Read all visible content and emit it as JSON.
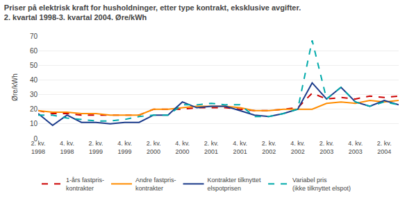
{
  "chart_data": {
    "type": "line",
    "title": "Priser på elektrisk kraft for husholdninger, etter type kontrakt, eksklusive avgifter.",
    "subtitle": "2. kvartal 1998-3. kvartal 2004. Øre/kWh",
    "ylabel": "Øre/kWh",
    "categories": [
      "2. kv.\n1998",
      null,
      "4. kv.\n1998",
      null,
      "2. kv.\n1999",
      null,
      "4. kv.\n1999",
      null,
      "2. kv.\n2000",
      null,
      "4. kv.\n2000",
      null,
      "2. kv.\n2001",
      null,
      "4. kv.\n2001",
      null,
      "2. kv.\n2002",
      null,
      "4. kv.\n2002",
      null,
      "2. kv.\n2003",
      null,
      "4. kv.\n2003",
      null,
      "2. kv.\n2004",
      null
    ],
    "series": [
      {
        "name": "1-års fastpris-\nkontrakter",
        "color": "#cc0000",
        "line_style": "dashed",
        "values": [
          19,
          17,
          17,
          16,
          16,
          16,
          16,
          16,
          20,
          20,
          20,
          21,
          21,
          21,
          20,
          19,
          19,
          20,
          21,
          31,
          27,
          28,
          27,
          29,
          28,
          29
        ]
      },
      {
        "name": "Andre fastpris-\nkontrakter",
        "color": "#ff8c00",
        "line_style": "solid",
        "values": [
          19,
          18,
          18,
          17,
          17,
          16,
          16,
          16,
          20,
          20,
          21,
          22,
          22,
          22,
          21,
          19,
          19,
          20,
          20,
          20,
          24,
          25,
          24,
          26,
          25,
          26
        ]
      },
      {
        "name": "Kontrakter tilknyttet\nelspotprisen",
        "color": "#1a3a8a",
        "line_style": "solid",
        "values": [
          17,
          9,
          16,
          11,
          11,
          10,
          11,
          11,
          16,
          16,
          25,
          21,
          22,
          22,
          19,
          16,
          15,
          17,
          20,
          38,
          27,
          35,
          25,
          22,
          26,
          23
        ]
      },
      {
        "name": "Variabel pris\n(ikke tilknyttet elspot)",
        "color": "#00aaaa",
        "line_style": "dashed",
        "values": [
          16,
          16,
          14,
          13,
          12,
          12,
          13,
          15,
          16,
          16,
          23,
          23,
          24,
          23,
          23,
          15,
          15,
          17,
          20,
          67,
          27,
          35,
          25,
          22,
          25,
          23
        ]
      }
    ],
    "ylim": [
      0,
      70
    ],
    "yticks": [
      0,
      10,
      20,
      30,
      40,
      50,
      60,
      70
    ],
    "grid": true,
    "legend": "bottom"
  }
}
